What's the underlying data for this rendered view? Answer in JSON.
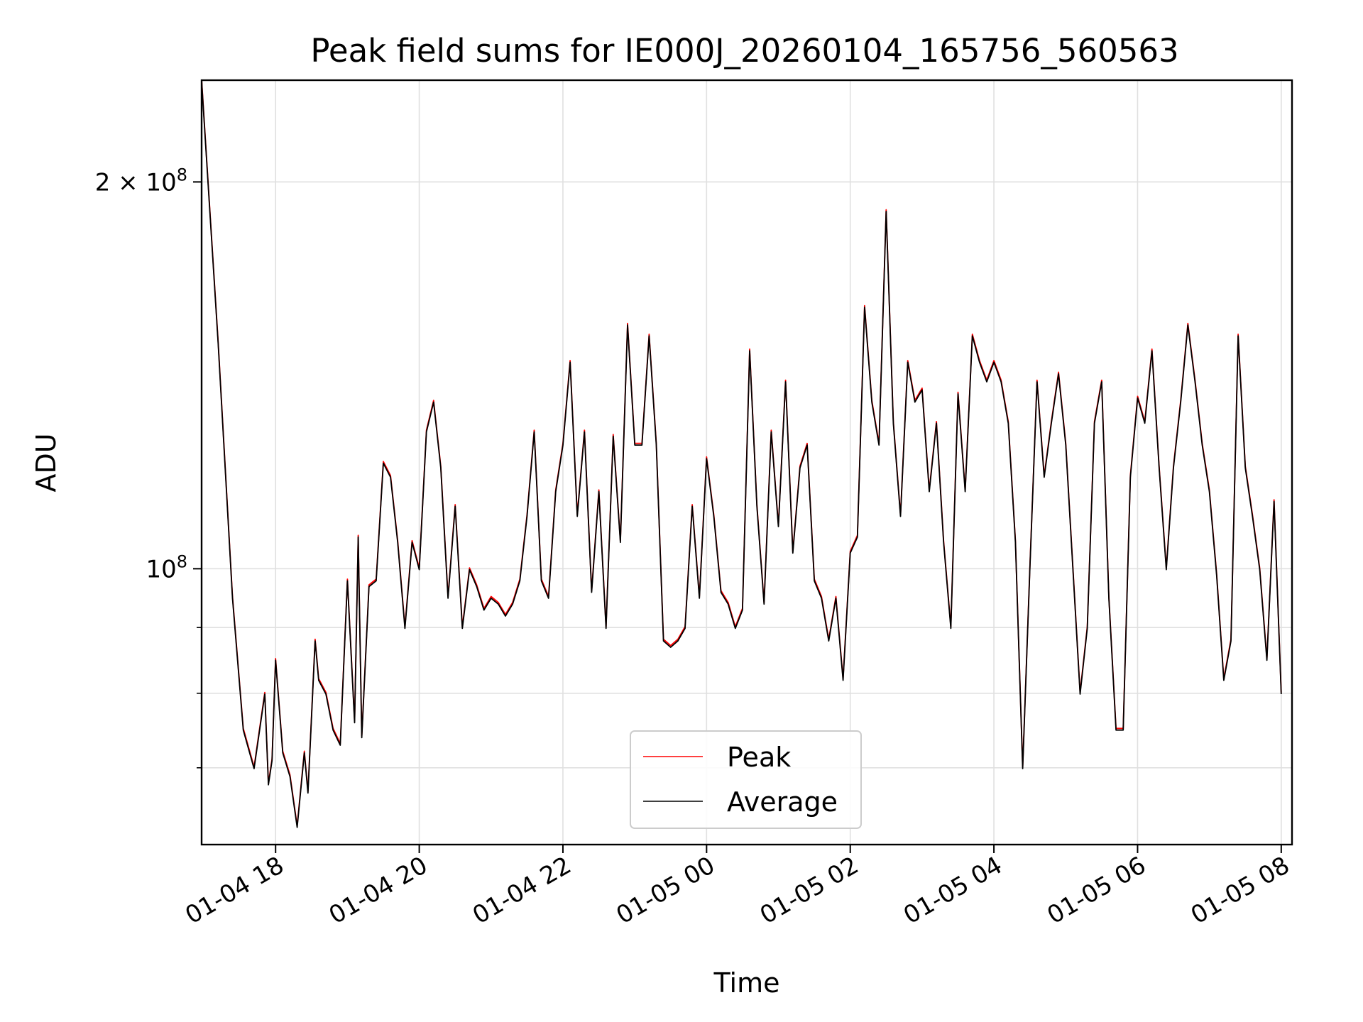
{
  "chart_data": {
    "type": "line",
    "title": "Peak field sums for IE000J_20260104_165756_560563",
    "xlabel": "Time",
    "ylabel": "ADU",
    "yscale": "log",
    "ylim": [
      61000000,
      240000000
    ],
    "xlim_hours": [
      16.97,
      32.15
    ],
    "grid": true,
    "legend_position": "lower center",
    "x_ticks": [
      {
        "hour": 18,
        "label": "01-04 18"
      },
      {
        "hour": 20,
        "label": "01-04 20"
      },
      {
        "hour": 22,
        "label": "01-04 22"
      },
      {
        "hour": 24,
        "label": "01-05 00"
      },
      {
        "hour": 26,
        "label": "01-05 02"
      },
      {
        "hour": 28,
        "label": "01-05 04"
      },
      {
        "hour": 30,
        "label": "01-05 06"
      },
      {
        "hour": 32,
        "label": "01-05 08"
      }
    ],
    "y_major_ticks": [
      {
        "value": 100000000,
        "base": "10",
        "exp": "8",
        "mantissa": ""
      },
      {
        "value": 200000000,
        "base": "10",
        "exp": "8",
        "mantissa": "2 × "
      }
    ],
    "y_minor_ticks": [
      70000000,
      80000000,
      90000000
    ],
    "x_hours": [
      16.97,
      17.2,
      17.4,
      17.55,
      17.7,
      17.85,
      17.9,
      17.95,
      18.0,
      18.1,
      18.2,
      18.3,
      18.4,
      18.45,
      18.55,
      18.6,
      18.7,
      18.8,
      18.9,
      19.0,
      19.1,
      19.15,
      19.2,
      19.3,
      19.4,
      19.5,
      19.6,
      19.7,
      19.8,
      19.9,
      20.0,
      20.1,
      20.2,
      20.3,
      20.4,
      20.5,
      20.6,
      20.7,
      20.8,
      20.9,
      21.0,
      21.1,
      21.2,
      21.3,
      21.4,
      21.5,
      21.6,
      21.7,
      21.8,
      21.9,
      22.0,
      22.1,
      22.2,
      22.3,
      22.4,
      22.5,
      22.6,
      22.7,
      22.8,
      22.9,
      23.0,
      23.1,
      23.2,
      23.3,
      23.4,
      23.5,
      23.6,
      23.7,
      23.8,
      23.9,
      24.0,
      24.1,
      24.2,
      24.3,
      24.4,
      24.5,
      24.6,
      24.7,
      24.8,
      24.9,
      25.0,
      25.1,
      25.2,
      25.3,
      25.4,
      25.5,
      25.6,
      25.7,
      25.8,
      25.9,
      26.0,
      26.1,
      26.2,
      26.3,
      26.4,
      26.5,
      26.6,
      26.7,
      26.8,
      26.9,
      27.0,
      27.1,
      27.2,
      27.3,
      27.4,
      27.5,
      27.6,
      27.7,
      27.8,
      27.9,
      28.0,
      28.1,
      28.2,
      28.3,
      28.4,
      28.5,
      28.6,
      28.7,
      28.8,
      28.9,
      29.0,
      29.1,
      29.2,
      29.3,
      29.4,
      29.5,
      29.6,
      29.7,
      29.8,
      29.9,
      30.0,
      30.1,
      30.2,
      30.3,
      30.4,
      30.5,
      30.6,
      30.7,
      30.8,
      30.9,
      31.0,
      31.1,
      31.2,
      31.3,
      31.4,
      31.5,
      31.6,
      31.7,
      31.8,
      31.9,
      32.0
    ],
    "series": [
      {
        "name": "Peak",
        "color": "#ff0000",
        "values": [
          240000000,
          150000000,
          95000000,
          75000000,
          70000000,
          80000000,
          68000000,
          71000000,
          85000000,
          72000000,
          69000000,
          63000000,
          72000000,
          67000000,
          88000000,
          82000000,
          80000000,
          75000000,
          73000000,
          98000000,
          76000000,
          106000000,
          74000000,
          97000000,
          98000000,
          121000000,
          118000000,
          105000000,
          90000000,
          105000000,
          100000000,
          128000000,
          135000000,
          120000000,
          95000000,
          112000000,
          90000000,
          100000000,
          97000000,
          93000000,
          95000000,
          94000000,
          92000000,
          94000000,
          98000000,
          110000000,
          128000000,
          98000000,
          95000000,
          115000000,
          125000000,
          145000000,
          110000000,
          128000000,
          96000000,
          115000000,
          90000000,
          127000000,
          105000000,
          155000000,
          125000000,
          125000000,
          152000000,
          125000000,
          88000000,
          87000000,
          88000000,
          90000000,
          112000000,
          95000000,
          122000000,
          110000000,
          96000000,
          94000000,
          90000000,
          93000000,
          148000000,
          112000000,
          94000000,
          128000000,
          108000000,
          140000000,
          103000000,
          120000000,
          125000000,
          98000000,
          95000000,
          88000000,
          95000000,
          82000000,
          103000000,
          106000000,
          160000000,
          135000000,
          125000000,
          190000000,
          130000000,
          110000000,
          145000000,
          135000000,
          138000000,
          115000000,
          130000000,
          105000000,
          90000000,
          137000000,
          115000000,
          152000000,
          145000000,
          140000000,
          145000000,
          140000000,
          130000000,
          105000000,
          70000000,
          100000000,
          140000000,
          118000000,
          130000000,
          142000000,
          125000000,
          100000000,
          80000000,
          90000000,
          130000000,
          140000000,
          95000000,
          75000000,
          75000000,
          118000000,
          136000000,
          130000000,
          148000000,
          120000000,
          100000000,
          120000000,
          135000000,
          155000000,
          140000000,
          125000000,
          115000000,
          99000000,
          82000000,
          88000000,
          152000000,
          120000000,
          110000000,
          100000000,
          85000000,
          113000000,
          80000000
        ]
      },
      {
        "name": "Average",
        "color": "#000000",
        "values": [
          240000000,
          150000000,
          95000000,
          75000000,
          70000000,
          80000000,
          68000000,
          71000000,
          85000000,
          72000000,
          69000000,
          63000000,
          72000000,
          67000000,
          88000000,
          82000000,
          80000000,
          75000000,
          73000000,
          98000000,
          76000000,
          106000000,
          74000000,
          97000000,
          98000000,
          121000000,
          118000000,
          105000000,
          90000000,
          105000000,
          100000000,
          128000000,
          135000000,
          120000000,
          95000000,
          112000000,
          90000000,
          100000000,
          97000000,
          93000000,
          95000000,
          94000000,
          92000000,
          94000000,
          98000000,
          110000000,
          128000000,
          98000000,
          95000000,
          115000000,
          125000000,
          145000000,
          110000000,
          128000000,
          96000000,
          115000000,
          90000000,
          127000000,
          105000000,
          155000000,
          125000000,
          125000000,
          152000000,
          125000000,
          88000000,
          87000000,
          88000000,
          90000000,
          112000000,
          95000000,
          122000000,
          110000000,
          96000000,
          94000000,
          90000000,
          93000000,
          148000000,
          112000000,
          94000000,
          128000000,
          108000000,
          140000000,
          103000000,
          120000000,
          125000000,
          98000000,
          95000000,
          88000000,
          95000000,
          82000000,
          103000000,
          106000000,
          160000000,
          135000000,
          125000000,
          190000000,
          130000000,
          110000000,
          145000000,
          135000000,
          138000000,
          115000000,
          130000000,
          105000000,
          90000000,
          137000000,
          115000000,
          152000000,
          145000000,
          140000000,
          145000000,
          140000000,
          130000000,
          105000000,
          70000000,
          100000000,
          140000000,
          118000000,
          130000000,
          142000000,
          125000000,
          100000000,
          80000000,
          90000000,
          130000000,
          140000000,
          95000000,
          75000000,
          75000000,
          118000000,
          136000000,
          130000000,
          148000000,
          120000000,
          100000000,
          120000000,
          135000000,
          155000000,
          140000000,
          125000000,
          115000000,
          99000000,
          82000000,
          88000000,
          152000000,
          120000000,
          110000000,
          100000000,
          85000000,
          113000000,
          80000000
        ]
      }
    ]
  }
}
